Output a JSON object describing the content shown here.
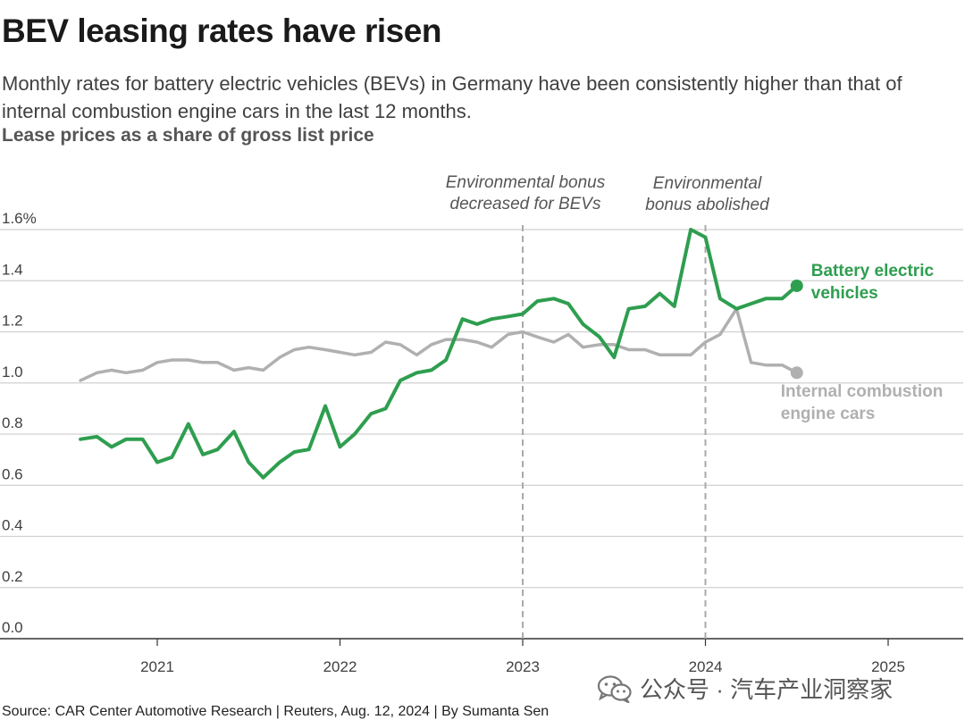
{
  "header": {
    "title": "BEV leasing rates have risen",
    "subtitle": "Monthly rates for battery electric vehicles (BEVs) in Germany have been consistently higher than that of internal combustion engine cars in the last 12 months.",
    "unit_label": "Lease prices as a share of gross list price"
  },
  "footer": {
    "source": "Source: CAR Center Automotive Research | Reuters, Aug. 12, 2024 | By Sumanta Sen",
    "watermark_text": "公众号 · 汽车产业洞察家",
    "watermark_icon": "wechat-icon"
  },
  "chart_data": {
    "type": "line",
    "title": "BEV leasing rates have risen",
    "ylabel": "Lease prices as a share of gross list price",
    "xlabel": "",
    "ylim": [
      0,
      1.6
    ],
    "xlim": [
      2020.6,
      2025.4
    ],
    "yticks": [
      {
        "value": 0.0,
        "label": "0.0"
      },
      {
        "value": 0.2,
        "label": "0.2"
      },
      {
        "value": 0.4,
        "label": "0.4"
      },
      {
        "value": 0.6,
        "label": "0.6"
      },
      {
        "value": 0.8,
        "label": "0.8"
      },
      {
        "value": 1.0,
        "label": "1.0"
      },
      {
        "value": 1.2,
        "label": "1.2"
      },
      {
        "value": 1.4,
        "label": "1.4"
      },
      {
        "value": 1.6,
        "label": "1.6%"
      }
    ],
    "xticks": [
      {
        "value": 2021,
        "label": "2021"
      },
      {
        "value": 2022,
        "label": "2022"
      },
      {
        "value": 2023,
        "label": "2023"
      },
      {
        "value": 2024,
        "label": "2024"
      },
      {
        "value": 2025,
        "label": "2025"
      }
    ],
    "annotations": [
      {
        "x": 2023.0,
        "lines": [
          "Environmental bonus",
          "decreased for BEVs"
        ]
      },
      {
        "x": 2024.0,
        "lines": [
          "Environmental",
          "bonus abolished"
        ]
      }
    ],
    "grid": true,
    "series": [
      {
        "name": "Battery electric vehicles",
        "label_lines": [
          "Battery electric",
          "vehicles"
        ],
        "color": "#2e9e4f",
        "x": [
          2020.58,
          2020.67,
          2020.75,
          2020.83,
          2020.92,
          2021.0,
          2021.08,
          2021.17,
          2021.25,
          2021.33,
          2021.42,
          2021.5,
          2021.58,
          2021.67,
          2021.75,
          2021.83,
          2021.92,
          2022.0,
          2022.08,
          2022.17,
          2022.25,
          2022.33,
          2022.42,
          2022.5,
          2022.58,
          2022.67,
          2022.75,
          2022.83,
          2022.92,
          2023.0,
          2023.08,
          2023.17,
          2023.25,
          2023.33,
          2023.42,
          2023.5,
          2023.58,
          2023.67,
          2023.75,
          2023.83,
          2023.92,
          2024.0,
          2024.08,
          2024.17,
          2024.25,
          2024.33,
          2024.42,
          2024.5
        ],
        "values": [
          0.78,
          0.79,
          0.75,
          0.78,
          0.78,
          0.69,
          0.71,
          0.84,
          0.72,
          0.74,
          0.81,
          0.69,
          0.63,
          0.69,
          0.73,
          0.74,
          0.91,
          0.75,
          0.8,
          0.88,
          0.9,
          1.01,
          1.04,
          1.05,
          1.09,
          1.25,
          1.23,
          1.25,
          1.26,
          1.27,
          1.32,
          1.33,
          1.31,
          1.23,
          1.18,
          1.1,
          1.29,
          1.3,
          1.35,
          1.3,
          1.6,
          1.57,
          1.33,
          1.29,
          1.31,
          1.33,
          1.33,
          1.38
        ]
      },
      {
        "name": "Internal combustion engine cars",
        "label_lines": [
          "Internal combustion",
          "engine cars"
        ],
        "color": "#b0b0b0",
        "x": [
          2020.58,
          2020.67,
          2020.75,
          2020.83,
          2020.92,
          2021.0,
          2021.08,
          2021.17,
          2021.25,
          2021.33,
          2021.42,
          2021.5,
          2021.58,
          2021.67,
          2021.75,
          2021.83,
          2021.92,
          2022.0,
          2022.08,
          2022.17,
          2022.25,
          2022.33,
          2022.42,
          2022.5,
          2022.58,
          2022.67,
          2022.75,
          2022.83,
          2022.92,
          2023.0,
          2023.08,
          2023.17,
          2023.25,
          2023.33,
          2023.42,
          2023.5,
          2023.58,
          2023.67,
          2023.75,
          2023.83,
          2023.92,
          2024.0,
          2024.08,
          2024.17,
          2024.25,
          2024.33,
          2024.42,
          2024.5
        ],
        "values": [
          1.01,
          1.04,
          1.05,
          1.04,
          1.05,
          1.08,
          1.09,
          1.09,
          1.08,
          1.08,
          1.05,
          1.06,
          1.05,
          1.1,
          1.13,
          1.14,
          1.13,
          1.12,
          1.11,
          1.12,
          1.16,
          1.15,
          1.11,
          1.15,
          1.17,
          1.17,
          1.16,
          1.14,
          1.19,
          1.2,
          1.18,
          1.16,
          1.19,
          1.14,
          1.15,
          1.15,
          1.13,
          1.13,
          1.11,
          1.11,
          1.11,
          1.16,
          1.19,
          1.29,
          1.08,
          1.07,
          1.07,
          1.04
        ]
      }
    ]
  }
}
